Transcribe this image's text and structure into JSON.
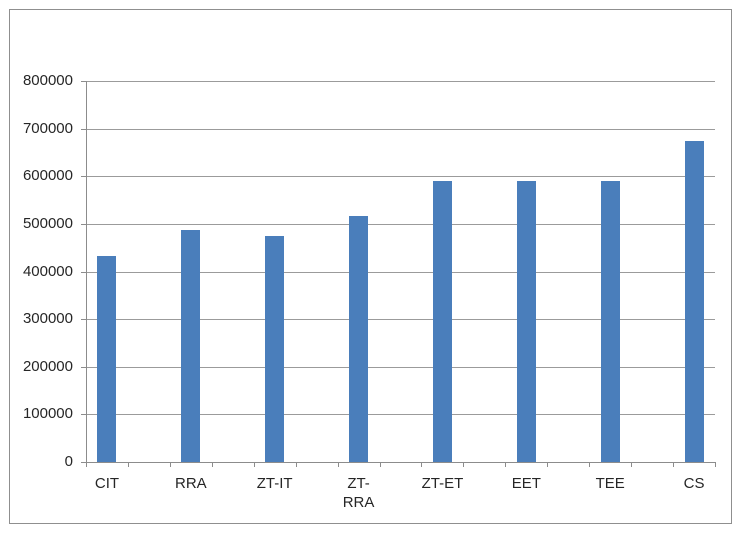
{
  "window": {
    "background_color": "#ffffff",
    "frame_border_color": "#8f8f8f"
  },
  "chart_data": {
    "type": "bar",
    "title": "",
    "categories": [
      "CIT",
      "RRA",
      "ZT-IT",
      "ZT-RRA",
      "ZT-ET",
      "EET",
      "TEE",
      "CS"
    ],
    "category_label_lines": [
      [
        "CIT"
      ],
      [
        "RRA"
      ],
      [
        "ZT-IT"
      ],
      [
        "ZT-",
        "RRA"
      ],
      [
        "ZT-ET"
      ],
      [
        "EET"
      ],
      [
        "TEE"
      ],
      [
        "CS"
      ]
    ],
    "values": [
      433000,
      487000,
      474000,
      516000,
      589000,
      589000,
      589000,
      674000
    ],
    "xlabel": "",
    "ylabel": "",
    "ylim": [
      0,
      800000
    ],
    "y_tick_step": 100000,
    "y_tick_labels": [
      "0",
      "100000",
      "200000",
      "300000",
      "400000",
      "500000",
      "600000",
      "700000",
      "800000"
    ],
    "grid": true,
    "legend": false,
    "gap_slots_between_bars": true,
    "x_tick_intervals": 15,
    "colors": {
      "bar_fill": "#4a7ebb",
      "gridline": "#9b9b9b",
      "axis": "#8c8c8c",
      "tick": "#8c8c8c",
      "text": "#262626"
    }
  }
}
